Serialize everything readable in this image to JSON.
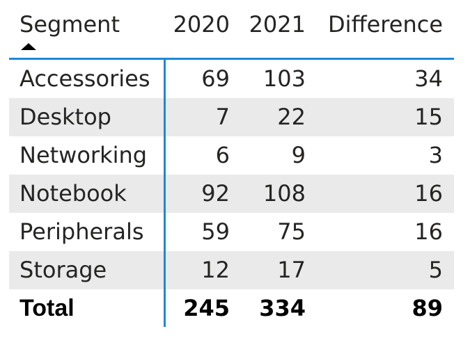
{
  "table": {
    "headers": {
      "segment": "Segment",
      "y2020": "2020",
      "y2021": "2021",
      "difference": "Difference"
    },
    "sort": {
      "column": "Segment",
      "direction": "ascending"
    },
    "rows": [
      {
        "segment": "Accessories",
        "y2020": "69",
        "y2021": "103",
        "difference": "34"
      },
      {
        "segment": "Desktop",
        "y2020": "7",
        "y2021": "22",
        "difference": "15"
      },
      {
        "segment": "Networking",
        "y2020": "6",
        "y2021": "9",
        "difference": "3"
      },
      {
        "segment": "Notebook",
        "y2020": "92",
        "y2021": "108",
        "difference": "16"
      },
      {
        "segment": "Peripherals",
        "y2020": "59",
        "y2021": "75",
        "difference": "16"
      },
      {
        "segment": "Storage",
        "y2020": "12",
        "y2021": "17",
        "difference": "5"
      }
    ],
    "total": {
      "label": "Total",
      "y2020": "245",
      "y2021": "334",
      "difference": "89"
    }
  },
  "colors": {
    "accent_line": "#1e88d7",
    "alt_row": "#eaeaea",
    "text": "#252423"
  },
  "icons": {
    "sort": "sort-ascending-icon"
  }
}
